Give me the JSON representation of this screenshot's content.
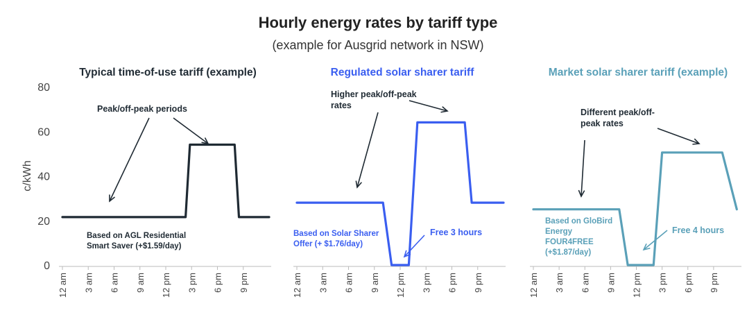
{
  "title": "Hourly energy rates by tariff type",
  "subtitle": "(example for Ausgrid network in NSW)",
  "colors": {
    "dark": "#1f2a33",
    "blue": "#3a5ef0",
    "teal": "#5aa0b8",
    "axis": "#bbbbbb"
  },
  "chart_data": [
    {
      "type": "line",
      "title": "Typical time-of-use tariff (example)",
      "title_color": "#1f2a33",
      "line_color": "#1f2a33",
      "ylabel": "c/kWh",
      "ylim": [
        0,
        80
      ],
      "yticks": [
        "0",
        "20",
        "40",
        "60",
        "80"
      ],
      "xticks": [
        "12 am",
        "3 am",
        "6 am",
        "9 am",
        "12 pm",
        "3 pm",
        "6 pm",
        "9 pm"
      ],
      "xlim": [
        0,
        24
      ],
      "series": [
        {
          "points": [
            [
              0,
              21.5
            ],
            [
              14.3,
              21.5
            ],
            [
              14.8,
              54
            ],
            [
              20,
              54
            ],
            [
              20.5,
              21.5
            ],
            [
              24,
              21.5
            ]
          ]
        }
      ],
      "annotations": [
        {
          "label": [
            "Peak/off-peak periods"
          ],
          "color": "#1f2a33"
        }
      ],
      "note": {
        "lines": [
          "Based on AGL Residential",
          "Smart Saver (+$1.59/day)"
        ],
        "color": "#1f2a33"
      }
    },
    {
      "type": "line",
      "title": "Regulated solar sharer tariff",
      "title_color": "#3a5ef0",
      "line_color": "#3a5ef0",
      "ylabel": "",
      "ylim": [
        0,
        80
      ],
      "xticks": [
        "12 am",
        "3 am",
        "6 am",
        "9 am",
        "12 pm",
        "3 pm",
        "6 pm",
        "9 pm"
      ],
      "xlim": [
        0,
        24
      ],
      "series": [
        {
          "points": [
            [
              0,
              28
            ],
            [
              10,
              28
            ],
            [
              11,
              0
            ],
            [
              13,
              0
            ],
            [
              14,
              64
            ],
            [
              19.5,
              64
            ],
            [
              20.3,
              28
            ],
            [
              24,
              28
            ]
          ]
        }
      ],
      "annotations": [
        {
          "label": [
            "Higher peak/off-peak",
            "rates"
          ],
          "color": "#1f2a33"
        },
        {
          "label": [
            "Free 3 hours"
          ],
          "color": "#3a5ef0"
        }
      ],
      "note": {
        "lines": [
          "Based on Solar Sharer",
          "Offer (+ $1.76/day)"
        ],
        "color": "#3a5ef0"
      }
    },
    {
      "type": "line",
      "title": "Market solar sharer tariff (example)",
      "title_color": "#5aa0b8",
      "line_color": "#5aa0b8",
      "ylabel": "",
      "ylim": [
        0,
        80
      ],
      "xticks": [
        "12 am",
        "3 am",
        "6 am",
        "9 am",
        "12 pm",
        "3 pm",
        "6 pm",
        "9 pm"
      ],
      "xlim": [
        0,
        24
      ],
      "series": [
        {
          "points": [
            [
              0,
              25
            ],
            [
              10,
              25
            ],
            [
              11,
              0
            ],
            [
              14,
              0
            ],
            [
              15,
              50.5
            ],
            [
              22,
              50.5
            ],
            [
              23.7,
              25
            ]
          ]
        }
      ],
      "annotations": [
        {
          "label": [
            "Different peak/off-",
            "peak rates"
          ],
          "color": "#1f2a33"
        },
        {
          "label": [
            "Free 4 hours"
          ],
          "color": "#5aa0b8"
        }
      ],
      "note": {
        "lines": [
          "Based on GloBird",
          "Energy",
          "FOUR4FREE",
          "(+$1.87/day)"
        ],
        "color": "#5aa0b8"
      }
    }
  ]
}
